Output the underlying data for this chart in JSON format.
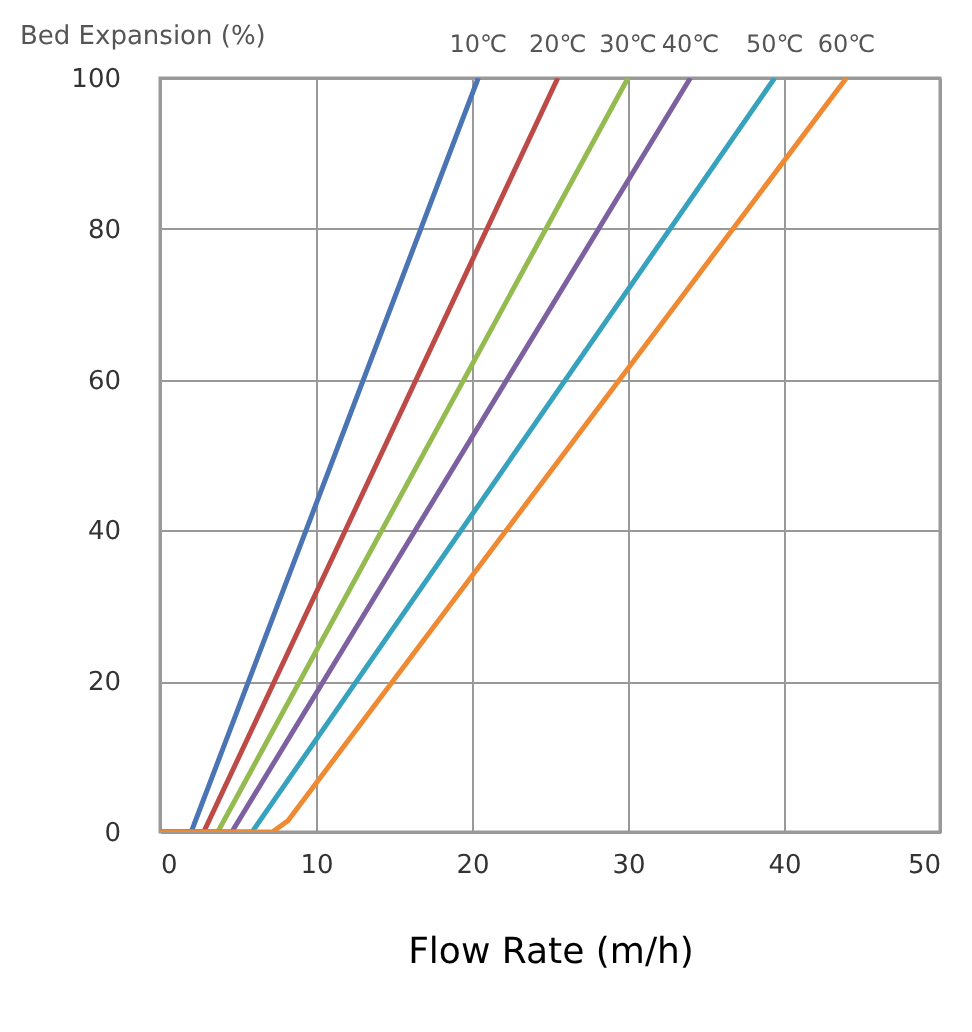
{
  "chart_data": {
    "type": "line",
    "xlabel": "Flow Rate (m/h)",
    "ylabel": "Bed Expansion (%)",
    "xlim": [
      0,
      50
    ],
    "ylim": [
      0,
      100
    ],
    "xticks": [
      0,
      10,
      20,
      30,
      40,
      50
    ],
    "yticks": [
      0,
      20,
      40,
      60,
      80,
      100
    ],
    "grid": true,
    "legend": false,
    "marker": "none",
    "line_style": "solid",
    "series": [
      {
        "name": "10℃",
        "color": "#4a74b4",
        "x": [
          0,
          2.0,
          20.4
        ],
        "values": [
          0,
          0,
          100
        ]
      },
      {
        "name": "20℃",
        "color": "#bd4a47",
        "x": [
          0,
          2.8,
          25.5
        ],
        "values": [
          0,
          0,
          100
        ]
      },
      {
        "name": "30℃",
        "color": "#94bb50",
        "x": [
          0,
          3.7,
          30.0
        ],
        "values": [
          0,
          0,
          100
        ]
      },
      {
        "name": "40℃",
        "color": "#7d60a0",
        "x": [
          0,
          4.6,
          34.0
        ],
        "values": [
          0,
          0,
          100
        ]
      },
      {
        "name": "50℃",
        "color": "#37a2bd",
        "x": [
          0,
          5.9,
          39.4
        ],
        "values": [
          0,
          0,
          100
        ]
      },
      {
        "name": "60℃",
        "color": "#f08a32",
        "x": [
          0,
          7.2,
          8.2,
          44.0
        ],
        "values": [
          0,
          0,
          1.5,
          100
        ]
      }
    ]
  }
}
